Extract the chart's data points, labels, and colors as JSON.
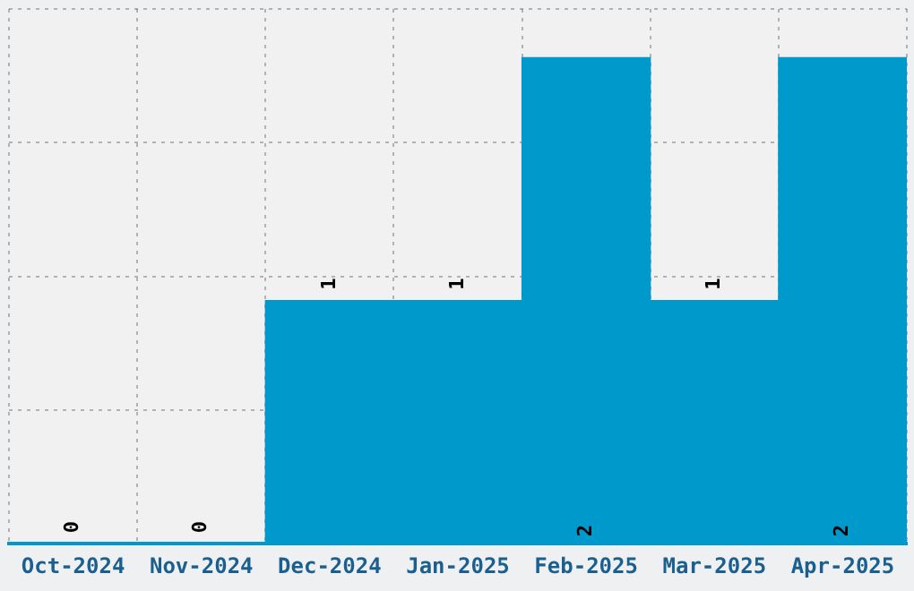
{
  "chart_data": {
    "type": "bar",
    "categories": [
      "Oct-2024",
      "Nov-2024",
      "Dec-2024",
      "Jan-2025",
      "Feb-2025",
      "Mar-2025",
      "Apr-2025"
    ],
    "values": [
      0,
      0,
      1,
      1,
      2,
      1,
      2
    ],
    "color": "#0099cc",
    "ylim": [
      0,
      2.2
    ],
    "yticks": [
      {
        "value": 0,
        "label": null
      },
      {
        "value": 0.55,
        "label": null
      },
      {
        "value": 1.1,
        "label": null
      },
      {
        "value": 1.65,
        "label": null
      },
      {
        "value": 2.2,
        "label": null
      }
    ],
    "grid": true,
    "data_labels": true,
    "tick_labels": "x"
  }
}
